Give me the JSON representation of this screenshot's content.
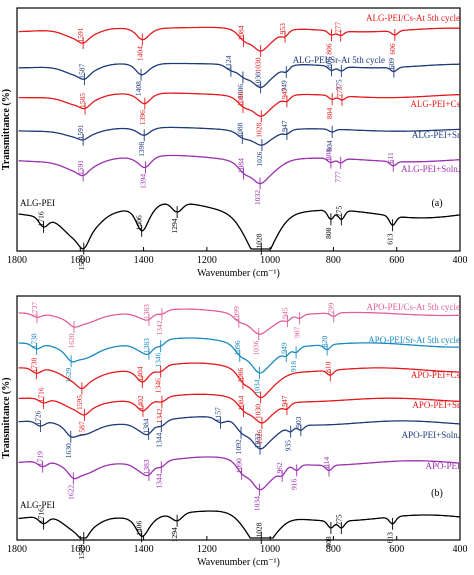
{
  "panels": [
    {
      "tag": "(a)",
      "xlabel": "Wavenumber (cm⁻¹)",
      "ylabel": "Transmittance (%)",
      "ticks": [
        "1800",
        "1600",
        "1400",
        "1200",
        "1000",
        "800",
        "600",
        "400"
      ],
      "spectra": [
        {
          "name": "ALG-PEI/Cs-At 5th cycle",
          "color": "#e41a1c",
          "peaks": [
            "1591",
            "1404",
            "1084",
            "1030",
            "953",
            "806",
            "777",
            "606"
          ]
        },
        {
          "name": "ALG-PEI/Sr-At 5th cycle",
          "color": "#1f3a7a",
          "peaks": [
            "1587",
            "1408",
            "1124",
            "1086",
            "1030",
            "949",
            "806",
            "775",
            "609"
          ]
        },
        {
          "name": "ALG-PEI+Cs",
          "color": "#e41a1c",
          "peaks": [
            "1585",
            "1396",
            "1086",
            "1028",
            "947",
            "804",
            "773"
          ]
        },
        {
          "name": "ALG-PEI+Sr",
          "color": "#1f3a7a",
          "peaks": [
            "1591",
            "1398",
            "1088",
            "1026",
            "947",
            "804"
          ]
        },
        {
          "name": "ALG-PEI+Soln.",
          "color": "#9b30b0",
          "peaks": [
            "1591",
            "1394",
            "1084",
            "1032",
            "808",
            "777",
            "611"
          ]
        },
        {
          "name": "ALG-PEI",
          "color": "#000000",
          "peaks": [
            "1716",
            "1589",
            "1406",
            "1294",
            "1028",
            "808",
            "775",
            "613"
          ]
        }
      ]
    },
    {
      "tag": "(b)",
      "xlabel": "Wavenumber (cm⁻¹)",
      "ylabel": "Transmittance (%)",
      "ticks": [
        "1800",
        "1600",
        "1400",
        "1200",
        "1000",
        "800",
        "600",
        "400"
      ],
      "spectra": [
        {
          "name": "APO-PEI/Cs-At 5th cycle",
          "color": "#e0609a",
          "peaks": [
            "1737",
            "1620",
            "1383",
            "1342",
            "1099",
            "1036",
            "945",
            "907",
            "799"
          ]
        },
        {
          "name": "APO-PEI/Sr-At 5th cycle",
          "color": "#1a8ac0",
          "peaks": [
            "1738",
            "1629",
            "1383",
            "1346",
            "1096",
            "1034",
            "949",
            "918",
            "820"
          ]
        },
        {
          "name": "APO-PEI+Cs",
          "color": "#e41a1c",
          "peaks": [
            "1738",
            "1595",
            "1404",
            "1346",
            "1086",
            "1030",
            "810"
          ]
        },
        {
          "name": "APO-PEI+Sr",
          "color": "#e41a1c",
          "peaks": [
            "1716",
            "1587",
            "1402",
            "1342",
            "1084",
            "1026",
            "947"
          ]
        },
        {
          "name": "APO-PEI+Soln.",
          "color": "#1f3a7a",
          "peaks": [
            "1726",
            "1630",
            "1384",
            "1344",
            "1157",
            "1092",
            "1032",
            "935",
            "903"
          ]
        },
        {
          "name": "APO-PEI",
          "color": "#9b30b0",
          "peaks": [
            "1719",
            "1622",
            "1383",
            "1344",
            "1090",
            "1034",
            "962",
            "916",
            "814"
          ]
        },
        {
          "name": "ALG-PEI",
          "color": "#000000",
          "peaks": [
            "1716",
            "1589",
            "1406",
            "1294",
            "1028",
            "808",
            "775",
            "613"
          ]
        }
      ]
    }
  ],
  "chart_data": [
    {
      "type": "line",
      "xlabel": "Wavenumber (cm⁻¹)",
      "ylabel": "Transmittance (%)",
      "xlim": [
        1800,
        400
      ],
      "series": [
        {
          "name": "ALG-PEI/Cs-At 5th cycle",
          "peaks_cm": [
            1591,
            1404,
            1084,
            1030,
            953,
            806,
            777,
            606
          ]
        },
        {
          "name": "ALG-PEI/Sr-At 5th cycle",
          "peaks_cm": [
            1587,
            1408,
            1124,
            1086,
            1030,
            949,
            806,
            775,
            609
          ]
        },
        {
          "name": "ALG-PEI+Cs",
          "peaks_cm": [
            1585,
            1396,
            1086,
            1028,
            947,
            804,
            773
          ]
        },
        {
          "name": "ALG-PEI+Sr",
          "peaks_cm": [
            1591,
            1398,
            1088,
            1026,
            947,
            804
          ]
        },
        {
          "name": "ALG-PEI+Soln.",
          "peaks_cm": [
            1591,
            1394,
            1084,
            1032,
            808,
            777,
            611
          ]
        },
        {
          "name": "ALG-PEI",
          "peaks_cm": [
            1716,
            1589,
            1406,
            1294,
            1028,
            808,
            775,
            613
          ]
        }
      ]
    },
    {
      "type": "line",
      "xlabel": "Wavenumber (cm⁻¹)",
      "ylabel": "Transmittance (%)",
      "xlim": [
        1800,
        400
      ],
      "series": [
        {
          "name": "APO-PEI/Cs-At 5th cycle",
          "peaks_cm": [
            1737,
            1620,
            1383,
            1342,
            1099,
            1036,
            945,
            907,
            799
          ]
        },
        {
          "name": "APO-PEI/Sr-At 5th cycle",
          "peaks_cm": [
            1738,
            1629,
            1383,
            1346,
            1096,
            1034,
            949,
            918,
            820
          ]
        },
        {
          "name": "APO-PEI+Cs",
          "peaks_cm": [
            1738,
            1595,
            1404,
            1346,
            1086,
            1030,
            810
          ]
        },
        {
          "name": "APO-PEI+Sr",
          "peaks_cm": [
            1716,
            1587,
            1402,
            1342,
            1084,
            1026,
            947
          ]
        },
        {
          "name": "APO-PEI+Soln.",
          "peaks_cm": [
            1726,
            1630,
            1384,
            1344,
            1157,
            1092,
            1032,
            935,
            903
          ]
        },
        {
          "name": "APO-PEI",
          "peaks_cm": [
            1719,
            1622,
            1383,
            1344,
            1090,
            1034,
            962,
            916,
            814
          ]
        },
        {
          "name": "ALG-PEI",
          "peaks_cm": [
            1716,
            1589,
            1406,
            1294,
            1028,
            808,
            775,
            613
          ]
        }
      ]
    }
  ]
}
